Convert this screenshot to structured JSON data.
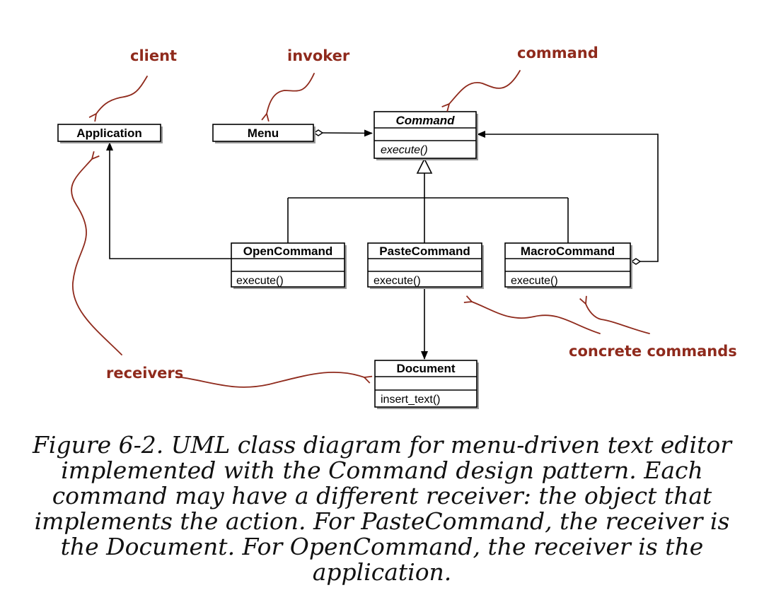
{
  "classes": {
    "application": {
      "name": "Application"
    },
    "menu": {
      "name": "Menu"
    },
    "command": {
      "name": "Command",
      "operation": "execute()"
    },
    "open_command": {
      "name": "OpenCommand",
      "operation": "execute()"
    },
    "paste_command": {
      "name": "PasteCommand",
      "operation": "execute()"
    },
    "macro_command": {
      "name": "MacroCommand",
      "operation": "execute()"
    },
    "document": {
      "name": "Document",
      "operation": "insert_text()"
    }
  },
  "annotations": {
    "client": "client",
    "invoker": "invoker",
    "command": "command",
    "receivers": "receivers",
    "concrete_commands": "concrete commands"
  },
  "colors": {
    "annotation": "#8f2a1c"
  },
  "caption": "Figure 6-2. UML class diagram for menu-driven text editor implemented with the Command design pattern. Each command may have a different receiver: the object that implements the action. For PasteCommand, the receiver is the Document. For OpenCommand, the receiver is the application."
}
